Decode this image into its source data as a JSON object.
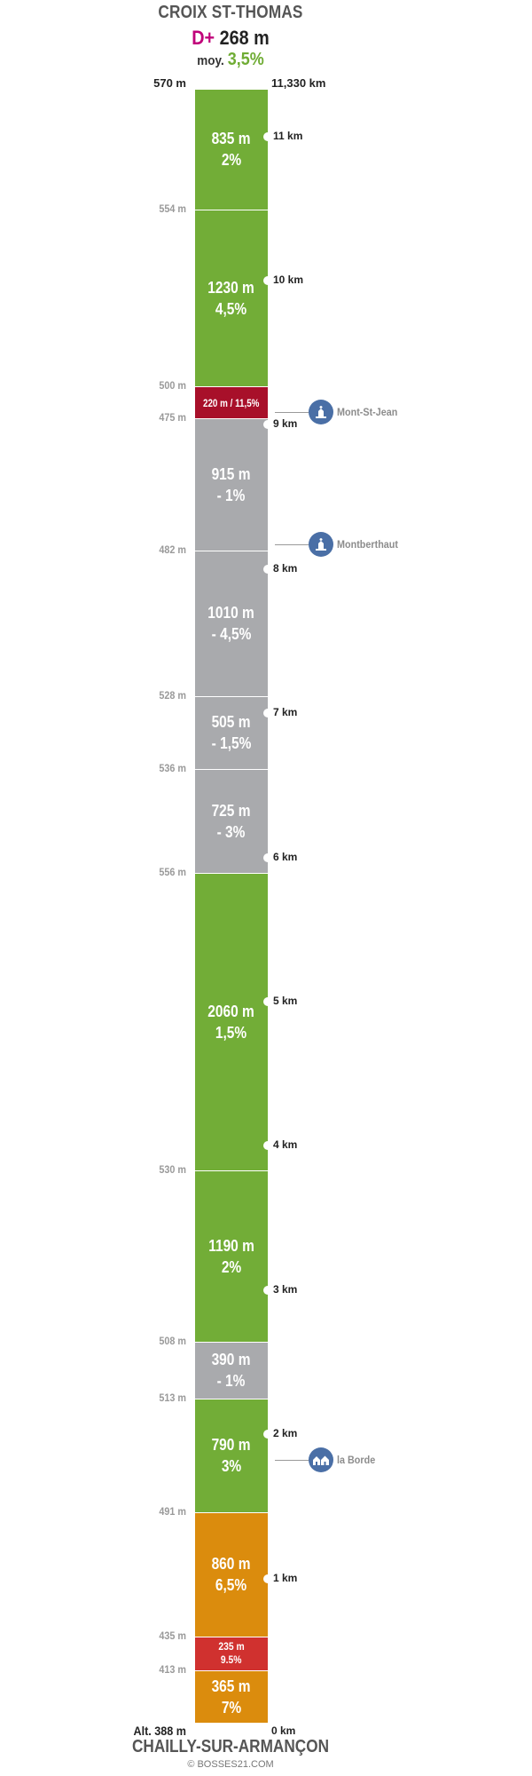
{
  "header": {
    "start_name": "CROIX ST-THOMAS",
    "dplus_label": "D+",
    "dplus_value": "268 m",
    "avg_label": "moy.",
    "avg_value": "3,5%"
  },
  "footer": {
    "end_name": "CHAILLY-SUR-ARMANÇON",
    "start_altitude": "Alt. 388 m",
    "start_distance": "0 km",
    "credit": "© BOSSES21.COM"
  },
  "chart_data": {
    "type": "profile",
    "top_altitude": "570 m",
    "top_distance": "11,330 km",
    "total_km": 11.33,
    "colors": {
      "green": "#72ad37",
      "grey": "#a9aaad",
      "orange": "#db8c0d",
      "red": "#d0312f",
      "darkred": "#a8102a"
    },
    "segments": [
      {
        "length_label": "365 m",
        "grade_label": "7%",
        "length_m": 365,
        "color": "orange"
      },
      {
        "length_label": "235 m",
        "grade_label": "9.5%",
        "length_m": 235,
        "color": "red"
      },
      {
        "length_label": "860 m",
        "grade_label": "6,5%",
        "length_m": 860,
        "color": "orange"
      },
      {
        "length_label": "790 m",
        "grade_label": "3%",
        "length_m": 790,
        "color": "green"
      },
      {
        "length_label": "390 m",
        "grade_label": "- 1%",
        "length_m": 390,
        "color": "grey"
      },
      {
        "length_label": "1190 m",
        "grade_label": "2%",
        "length_m": 1190,
        "color": "green"
      },
      {
        "length_label": "2060 m",
        "grade_label": "1,5%",
        "length_m": 2060,
        "color": "green"
      },
      {
        "length_label": "725 m",
        "grade_label": "- 3%",
        "length_m": 725,
        "color": "grey"
      },
      {
        "length_label": "505 m",
        "grade_label": "- 1,5%",
        "length_m": 505,
        "color": "grey"
      },
      {
        "length_label": "1010 m",
        "grade_label": "- 4,5%",
        "length_m": 1010,
        "color": "grey"
      },
      {
        "length_label": "915 m",
        "grade_label": "- 1%",
        "length_m": 915,
        "color": "grey"
      },
      {
        "length_label": "220 m / 11,5%",
        "grade_label": "",
        "length_m": 220,
        "color": "darkred"
      },
      {
        "length_label": "1230 m",
        "grade_label": "4,5%",
        "length_m": 1230,
        "color": "green"
      },
      {
        "length_label": "835 m",
        "grade_label": "2%",
        "length_m": 835,
        "color": "green"
      }
    ],
    "altitudes": [
      "413 m",
      "435 m",
      "491 m",
      "513 m",
      "508 m",
      "530 m",
      "556 m",
      "536 m",
      "528 m",
      "482 m",
      "475 m",
      "500 m",
      "554 m"
    ],
    "km_markers": [
      {
        "km": 1,
        "label": "1 km"
      },
      {
        "km": 2,
        "label": "2 km"
      },
      {
        "km": 3,
        "label": "3 km"
      },
      {
        "km": 4,
        "label": "4 km"
      },
      {
        "km": 5,
        "label": "5 km"
      },
      {
        "km": 6,
        "label": "6 km"
      },
      {
        "km": 7,
        "label": "7 km"
      },
      {
        "km": 8,
        "label": "8 km"
      },
      {
        "km": 9,
        "label": "9 km"
      },
      {
        "km": 10,
        "label": "10 km"
      },
      {
        "km": 11,
        "label": "11 km"
      }
    ],
    "pois": [
      {
        "name": "Mont-St-Jean",
        "km": 9.09,
        "icon": "church-icon"
      },
      {
        "name": "Montberthaut",
        "km": 8.17,
        "icon": "church-icon"
      },
      {
        "name": "la Borde",
        "km": 1.82,
        "icon": "houses-icon"
      }
    ]
  }
}
